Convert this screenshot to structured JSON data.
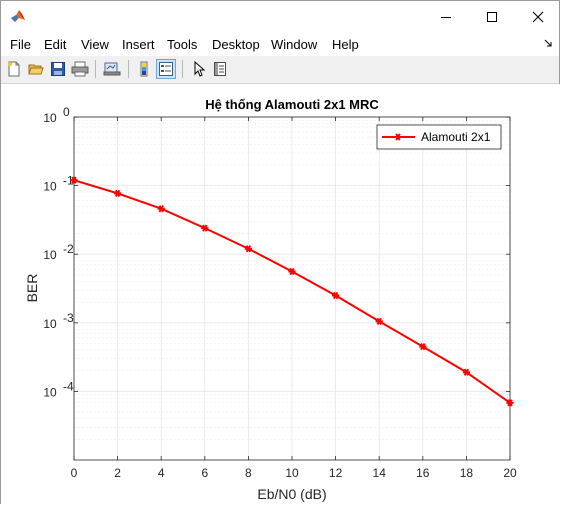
{
  "window": {
    "title": ""
  },
  "menu": {
    "items": [
      "File",
      "Edit",
      "View",
      "Insert",
      "Tools",
      "Desktop",
      "Window",
      "Help"
    ]
  },
  "toolbar": {
    "tools": [
      "new-figure-icon",
      "open-file-icon",
      "save-icon",
      "print-icon",
      "link-plot-icon",
      "colorbar-icon",
      "legend-icon",
      "pointer-icon",
      "property-inspector-icon"
    ]
  },
  "colors": {
    "series": "#ff0000",
    "grid": "#e6e6e6",
    "axis": "#262626"
  },
  "chart_data": {
    "type": "line",
    "title": "Hệ thống Alamouti 2x1 MRC",
    "xlabel": "Eb/N0 (dB)",
    "ylabel": "BER",
    "xlim": [
      0,
      20
    ],
    "ylim": [
      1e-05,
      1
    ],
    "yscale": "log",
    "grid": true,
    "minor_grid": true,
    "legend_position": "top-right",
    "x_ticks": [
      "0",
      "2",
      "4",
      "6",
      "8",
      "10",
      "12",
      "14",
      "16",
      "18",
      "20"
    ],
    "y_ticks": [
      {
        "base": "10",
        "exp": "-4"
      },
      {
        "base": "10",
        "exp": "-3"
      },
      {
        "base": "10",
        "exp": "-2"
      },
      {
        "base": "10",
        "exp": "-1"
      },
      {
        "base": "10",
        "exp": "0"
      }
    ],
    "series": [
      {
        "name": "Alamouti 2x1",
        "marker": "asterisk",
        "x": [
          0,
          2,
          4,
          6,
          8,
          10,
          12,
          14,
          16,
          18,
          20
        ],
        "y": [
          0.12,
          0.077,
          0.046,
          0.024,
          0.012,
          0.0056,
          0.0025,
          0.00105,
          0.00045,
          0.00019,
          6.8e-05
        ]
      }
    ]
  }
}
